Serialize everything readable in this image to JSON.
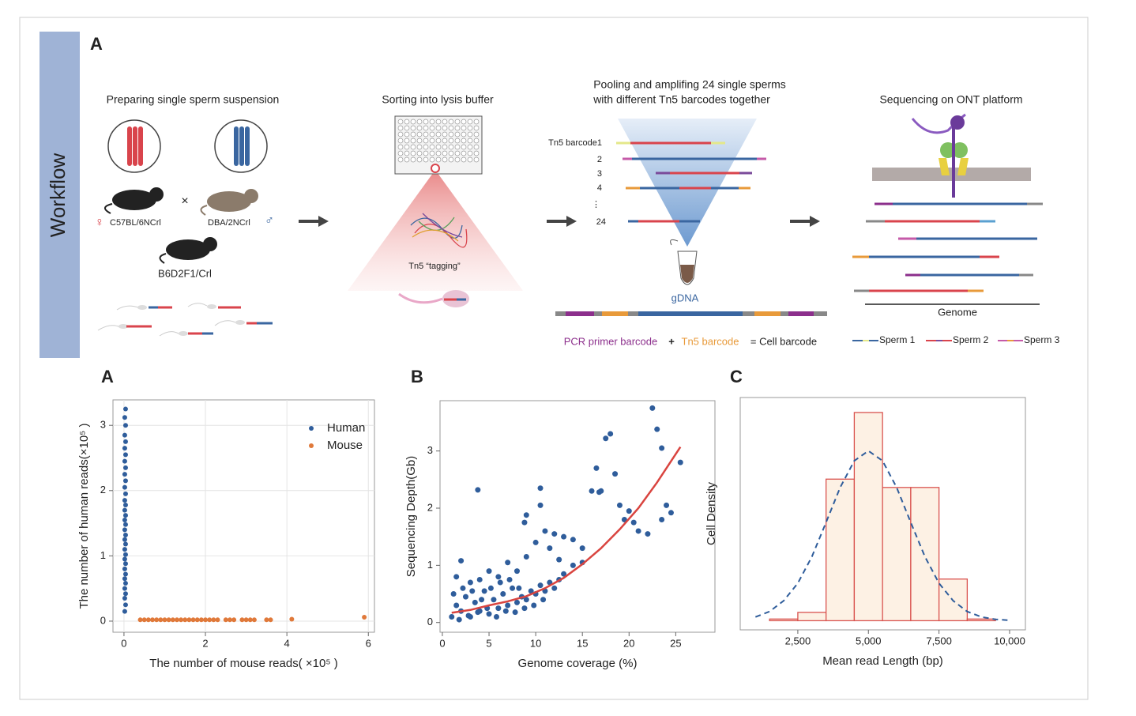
{
  "workflow": {
    "side_label": "Workflow",
    "panel": "A",
    "step1": {
      "title": "Preparing single sperm suspension",
      "female_symbol": "♀",
      "female": "C57BL/6NCrl",
      "cross": "×",
      "male": "DBA/2NCrl",
      "male_symbol": "♂",
      "offspring": "B6D2F1/Crl"
    },
    "step2": {
      "title": "Sorting into lysis buffer",
      "label": "Tn5 “tagging”"
    },
    "step3": {
      "title_lines": [
        "Pooling and amplifing 24 single sperms",
        "with different Tn5 barcodes together"
      ],
      "barcodes": [
        "Tn5 barcode1",
        "2",
        "3",
        "4",
        "⋮",
        "24"
      ],
      "gdna": "gDNA",
      "legend": [
        "PCR primer barcode",
        "+",
        "Tn5 barcode",
        "= Cell barcode"
      ]
    },
    "step4": {
      "title": "Sequencing on ONT platform",
      "genome": "Genome",
      "sperms": [
        "Sperm 1",
        "Sperm 2",
        "Sperm 3"
      ]
    }
  },
  "chart_data": [
    {
      "type": "scatter",
      "panel": "A",
      "xlabel": "The number of mouse reads( ×10⁵ )",
      "ylabel": "The number of human reads(×10⁵ )",
      "xlim": [
        -0.27,
        6.15
      ],
      "ylim": [
        -0.17,
        3.39
      ],
      "xticks": [
        0,
        2,
        4,
        6
      ],
      "yticks": [
        0,
        1,
        2,
        3
      ],
      "grid": true,
      "legend": "upper right",
      "series": [
        {
          "name": "Human",
          "color": "#2f5d9b",
          "x": [
            0.02,
            0.04,
            0.02,
            0.04,
            0.02,
            0.04,
            0.02,
            0.04,
            0.02,
            0.04,
            0.02,
            0.04,
            0.02,
            0.04,
            0.02,
            0.04,
            0.02,
            0.04,
            0.02,
            0.04,
            0.02,
            0.04,
            0.02,
            0.04,
            0.02,
            0.04,
            0.02,
            0.04,
            0.02,
            0.04,
            0.02,
            0.04,
            0.02,
            0.04,
            0.02,
            0.04
          ],
          "values": [
            0.15,
            0.25,
            0.35,
            0.42,
            0.5,
            0.58,
            0.65,
            0.72,
            0.8,
            0.88,
            0.95,
            1.02,
            1.1,
            1.18,
            1.25,
            1.32,
            1.4,
            1.48,
            1.55,
            1.62,
            1.7,
            1.78,
            1.85,
            1.95,
            2.05,
            2.15,
            2.25,
            2.35,
            2.45,
            2.55,
            2.65,
            2.75,
            2.85,
            3.0,
            3.12,
            3.25
          ]
        },
        {
          "name": "Mouse",
          "color": "#e0793a",
          "x": [
            0.4,
            0.5,
            0.6,
            0.7,
            0.8,
            0.9,
            1.0,
            1.1,
            1.2,
            1.3,
            1.4,
            1.5,
            1.6,
            1.7,
            1.8,
            1.9,
            2.0,
            2.1,
            2.2,
            2.3,
            2.5,
            2.6,
            2.7,
            2.9,
            3.0,
            3.1,
            3.2,
            3.5,
            3.6,
            4.12,
            5.9
          ],
          "values": [
            0.02,
            0.02,
            0.02,
            0.02,
            0.02,
            0.02,
            0.02,
            0.02,
            0.02,
            0.02,
            0.02,
            0.02,
            0.02,
            0.02,
            0.02,
            0.02,
            0.02,
            0.02,
            0.02,
            0.02,
            0.02,
            0.02,
            0.02,
            0.02,
            0.02,
            0.02,
            0.02,
            0.02,
            0.02,
            0.03,
            0.06
          ]
        }
      ]
    },
    {
      "type": "scatter",
      "panel": "B",
      "xlabel": "Genome coverage (%)",
      "ylabel": "Sequencing Depth(Gb)",
      "xlim": [
        -0.25,
        29.2
      ],
      "ylim": [
        -0.17,
        3.88
      ],
      "xticks": [
        0,
        5,
        10,
        15,
        20,
        25
      ],
      "yticks": [
        0,
        1,
        2,
        3
      ],
      "grid": false,
      "series": [
        {
          "color": "#2f5d9b",
          "x": [
            3.8,
            9,
            8.8,
            10.5,
            10.5,
            11,
            12,
            11.5,
            13,
            14,
            15,
            16.5,
            17.5,
            18,
            17,
            18.5,
            19,
            19.5,
            20,
            20.5,
            22.5,
            23,
            23.5,
            24,
            24.5,
            23.5,
            22,
            25.5,
            21,
            16,
            16.8,
            15,
            14,
            13,
            12.5,
            7,
            5,
            2,
            1.5,
            3,
            4,
            6,
            8,
            9,
            10,
            1,
            1.5,
            2,
            2.5,
            3,
            3.5,
            4,
            4.5,
            5,
            5.5,
            6,
            6.5,
            7,
            7.5,
            8,
            8.5,
            9,
            9.5,
            10,
            10.5,
            11,
            11.5,
            12,
            12.5,
            1.2,
            2.2,
            3.2,
            4.2,
            5.2,
            6.2,
            7.2,
            8.2,
            1.8,
            2.8,
            3.8,
            4.8,
            5.8,
            6.8,
            7.8,
            8.8,
            9.8,
            10.8
          ],
          "values": [
            2.32,
            1.88,
            1.75,
            2.35,
            2.05,
            1.6,
            1.55,
            1.3,
            1.5,
            1.45,
            1.3,
            2.7,
            3.22,
            3.3,
            2.3,
            2.6,
            2.05,
            1.8,
            1.95,
            1.75,
            3.75,
            3.38,
            3.05,
            2.05,
            1.92,
            1.8,
            1.55,
            2.8,
            1.6,
            2.3,
            2.28,
            1.05,
            1.0,
            0.85,
            1.1,
            1.05,
            0.9,
            1.08,
            0.8,
            0.7,
            0.75,
            0.8,
            0.9,
            1.15,
            1.4,
            0.1,
            0.3,
            0.2,
            0.45,
            0.1,
            0.35,
            0.2,
            0.55,
            0.15,
            0.4,
            0.25,
            0.5,
            0.3,
            0.6,
            0.35,
            0.45,
            0.4,
            0.55,
            0.5,
            0.65,
            0.55,
            0.7,
            0.6,
            0.75,
            0.5,
            0.6,
            0.55,
            0.4,
            0.6,
            0.7,
            0.75,
            0.6,
            0.05,
            0.12,
            0.18,
            0.25,
            0.1,
            0.2,
            0.18,
            0.25,
            0.3,
            0.4
          ]
        },
        {
          "type": "line",
          "color": "#d9443f",
          "x": [
            1,
            3,
            5,
            7,
            9,
            11,
            13,
            15,
            17,
            19,
            21,
            23,
            25.5
          ],
          "values": [
            0.17,
            0.22,
            0.3,
            0.37,
            0.46,
            0.6,
            0.78,
            1.02,
            1.3,
            1.63,
            2.0,
            2.45,
            3.07
          ]
        }
      ]
    },
    {
      "type": "histogram",
      "panel": "C",
      "xlabel": "Mean read Length (bp)",
      "ylabel": "Cell Density",
      "xlim": [
        460,
        10560
      ],
      "ylim": [
        -1.1,
        26.8
      ],
      "xticks": [
        {
          "value": 2500,
          "label": "2,500"
        },
        {
          "value": 5000,
          "label": "5,000"
        },
        {
          "value": 7500,
          "label": "7,500"
        },
        {
          "value": 10000,
          "label": "10,000"
        }
      ],
      "bins": [
        1500,
        2500,
        3500,
        4500,
        5500,
        6500,
        7500,
        8500,
        9500
      ],
      "values": [
        0.2,
        1,
        17,
        25,
        16,
        16,
        5,
        0.2
      ],
      "color": "#fdf1e4",
      "edgecolor": "#d9534f",
      "curve": {
        "color": "#2f5d9b",
        "dashed": true,
        "x": [
          1000,
          1500,
          2000,
          2500,
          3000,
          3500,
          4000,
          4500,
          5000,
          5500,
          6000,
          6500,
          7000,
          7500,
          8000,
          8500,
          9000,
          9500,
          10000
        ],
        "values": [
          0.45,
          1.1,
          2.4,
          4.5,
          7.7,
          11.8,
          16.0,
          19.2,
          20.4,
          19.2,
          16.0,
          11.8,
          7.7,
          4.5,
          2.4,
          1.1,
          0.45,
          0.16,
          0.05
        ]
      }
    }
  ]
}
